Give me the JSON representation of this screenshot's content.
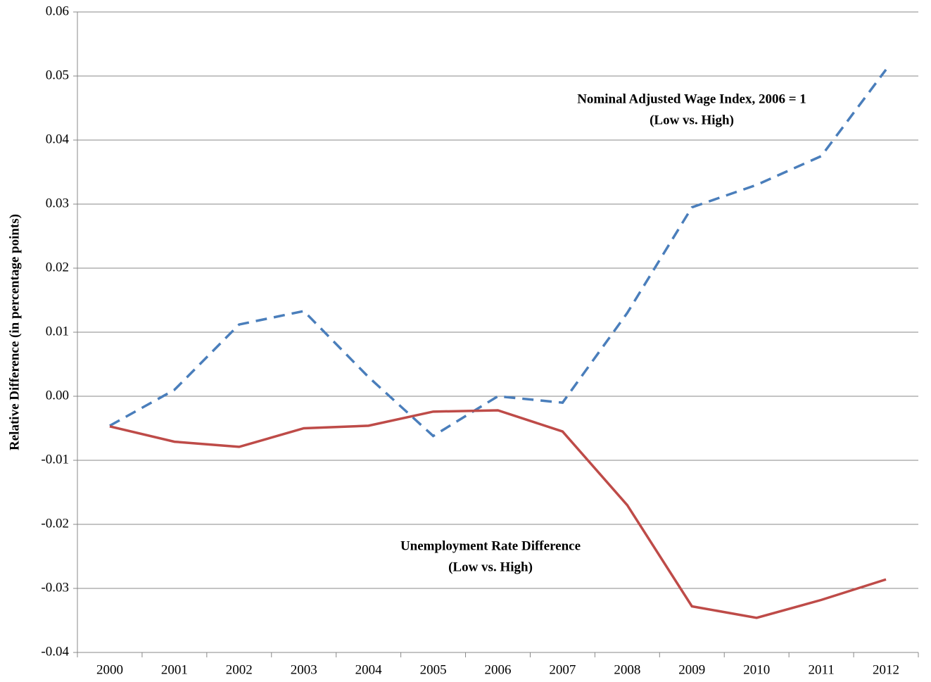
{
  "chart_data": {
    "type": "line",
    "y_label": "Relative Difference (in percentage points)",
    "categories": [
      "2000",
      "2001",
      "2002",
      "2003",
      "2004",
      "2005",
      "2006",
      "2007",
      "2008",
      "2009",
      "2010",
      "2011",
      "2012"
    ],
    "ylim": [
      -0.04,
      0.06
    ],
    "yticks": [
      -0.04,
      -0.03,
      -0.02,
      -0.01,
      {
        "value": 0,
        "label": "0.00"
      },
      0.01,
      0.02,
      0.03,
      0.04,
      0.05,
      0.06
    ],
    "grid": true,
    "series": [
      {
        "label_lines": [
          "Nominal Adjusted Wage Index, 2006 = 1",
          "(Low vs. High)"
        ],
        "color": "#4a7ebb",
        "dashed": true,
        "values": [
          -0.0046,
          0.001,
          0.0112,
          0.0133,
          0.003,
          -0.0062,
          0.0,
          -0.001,
          0.013,
          0.0295,
          0.033,
          0.0375,
          0.051
        ]
      },
      {
        "label_lines": [
          "Unemployment Rate Difference",
          "(Low vs. High)"
        ],
        "color": "#be4b48",
        "dashed": false,
        "values": [
          -0.0047,
          -0.0071,
          -0.0079,
          -0.005,
          -0.0046,
          -0.0024,
          -0.0022,
          -0.0055,
          -0.017,
          -0.0328,
          -0.0346,
          -0.0318,
          -0.0286
        ]
      }
    ]
  }
}
